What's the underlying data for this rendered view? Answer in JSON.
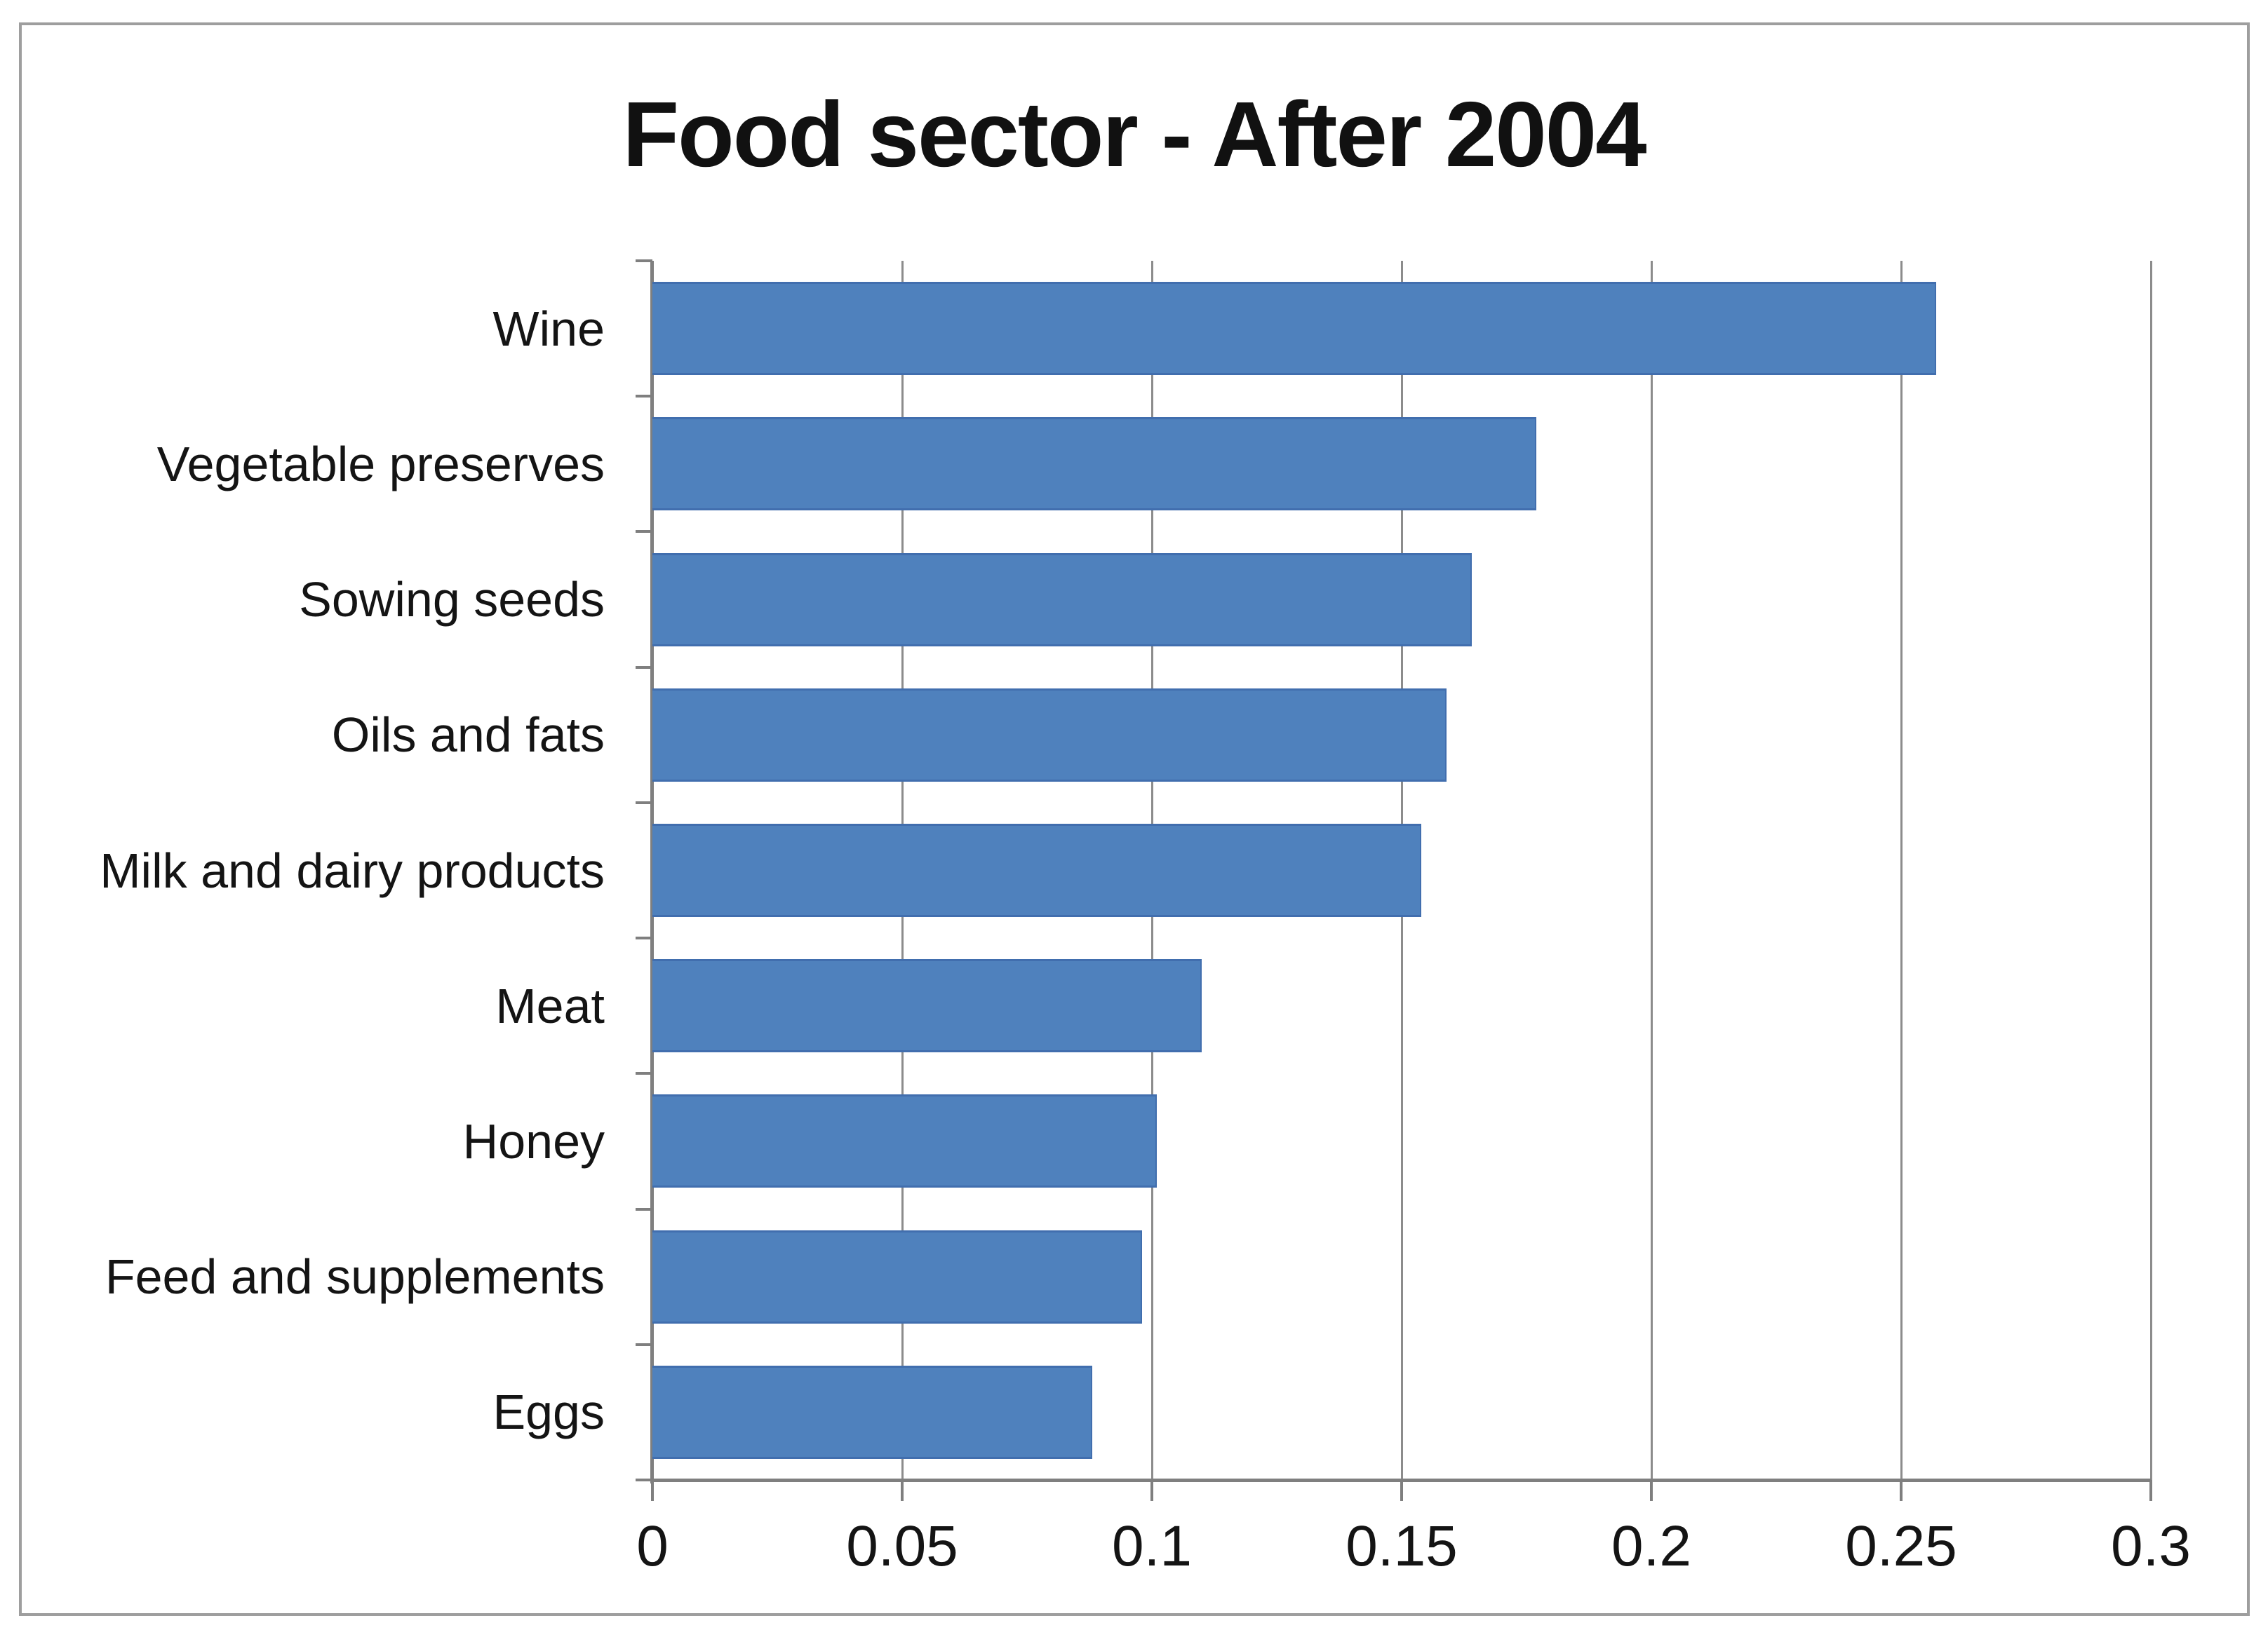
{
  "chart_data": {
    "type": "bar",
    "orientation": "horizontal",
    "title": "Food sector - After 2004",
    "categories": [
      "Wine",
      "Vegetable preserves",
      "Sowing seeds",
      "Oils and fats",
      "Milk and dairy products",
      "Meat",
      "Honey",
      "Feed and supplements",
      "Eggs"
    ],
    "values": [
      0.257,
      0.177,
      0.164,
      0.159,
      0.154,
      0.11,
      0.101,
      0.098,
      0.088
    ],
    "xlabel": "",
    "ylabel": "",
    "xlim": [
      0,
      0.3
    ],
    "xticks": [
      0,
      0.05,
      0.1,
      0.15,
      0.2,
      0.25,
      0.3
    ],
    "xtick_labels": [
      "0",
      "0.05",
      "0.1",
      "0.15",
      "0.2",
      "0.25",
      "0.3"
    ],
    "grid": true,
    "legend": false,
    "bar_color": "#4f81bd",
    "bar_border_color": "#416eae",
    "gridline_color": "#8c8c8c",
    "axis_color": "#7f7f7f",
    "text_color": "#141414",
    "frame_border_color": "#9e9e9e"
  }
}
